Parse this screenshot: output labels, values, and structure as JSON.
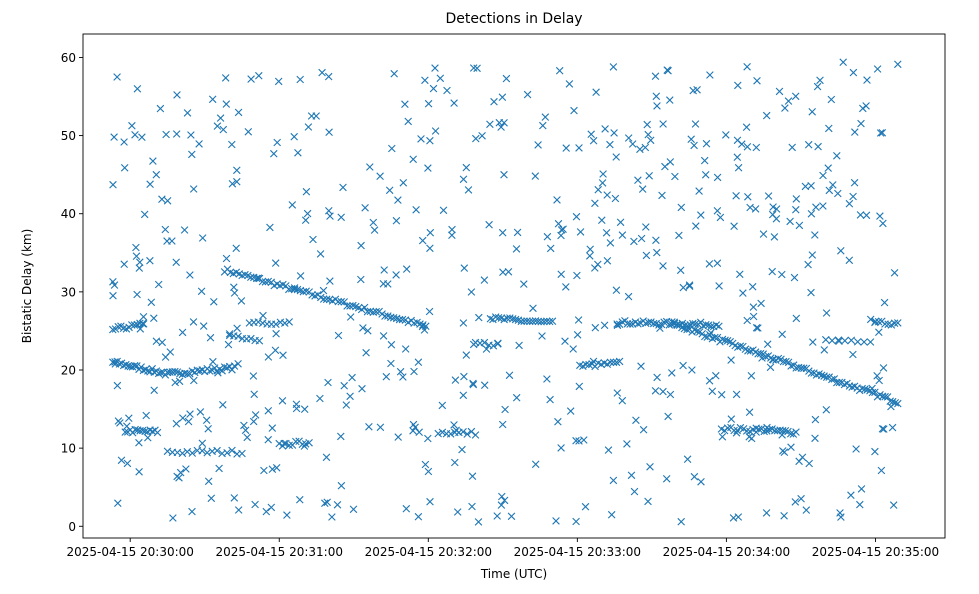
{
  "chart_data": {
    "type": "scatter",
    "title": "Detections in Delay",
    "xlabel": "Time (UTC)",
    "ylabel": "Bistatic Delay (km)",
    "x_range": [
      "2025-04-15 20:29:41",
      "2025-04-15 20:35:28"
    ],
    "xticks": [
      "2025-04-15 20:30:00",
      "2025-04-15 20:31:00",
      "2025-04-15 20:32:00",
      "2025-04-15 20:33:00",
      "2025-04-15 20:34:00",
      "2025-04-15 20:35:00"
    ],
    "ylim": [
      -1.5,
      63
    ],
    "yticks": [
      0,
      10,
      20,
      30,
      40,
      50,
      60
    ],
    "grid": false,
    "marker": "x",
    "color": "#1f77b4",
    "tracks": [
      {
        "from": [
          "2025-04-15 20:29:53",
          32.7
        ],
        "to": [
          "2025-04-15 20:30:52",
          32.7
        ],
        "count": 0
      },
      {
        "from": [
          "2025-04-15 20:30:38",
          32.8
        ],
        "to": [
          "2025-04-15 20:31:59",
          25.6
        ],
        "count": 70
      },
      {
        "from": [
          "2025-04-15 20:29:53",
          21.0
        ],
        "to": [
          "2025-04-15 20:30:15",
          19.5
        ],
        "count": 26
      },
      {
        "from": [
          "2025-04-15 20:30:15",
          19.5
        ],
        "to": [
          "2025-04-15 20:30:42",
          20.3
        ],
        "count": 28
      },
      {
        "from": [
          "2025-04-15 20:33:38",
          26.0
        ],
        "to": [
          "2025-04-15 20:35:09",
          15.9
        ],
        "count": 90
      },
      {
        "from": [
          "2025-04-15 20:33:16",
          26.1
        ],
        "to": [
          "2025-04-15 20:33:57",
          25.8
        ],
        "count": 40
      },
      {
        "from": [
          "2025-04-15 20:32:26",
          26.6
        ],
        "to": [
          "2025-04-15 20:32:50",
          26.0
        ],
        "count": 22
      },
      {
        "from": [
          "2025-04-15 20:29:53",
          25.2
        ],
        "to": [
          "2025-04-15 20:30:05",
          25.8
        ],
        "count": 12
      },
      {
        "from": [
          "2025-04-15 20:29:58",
          12.2
        ],
        "to": [
          "2025-04-15 20:30:11",
          12.1
        ],
        "count": 14
      },
      {
        "from": [
          "2025-04-15 20:30:15",
          9.5
        ],
        "to": [
          "2025-04-15 20:30:45",
          9.5
        ],
        "count": 16
      },
      {
        "from": [
          "2025-04-15 20:33:58",
          12.5
        ],
        "to": [
          "2025-04-15 20:34:12",
          12.3
        ],
        "count": 12
      },
      {
        "from": [
          "2025-04-15 20:34:12",
          12.4
        ],
        "to": [
          "2025-04-15 20:34:28",
          12.0
        ],
        "count": 16
      },
      {
        "from": [
          "2025-04-15 20:32:04",
          12.0
        ],
        "to": [
          "2025-04-15 20:32:19",
          11.9
        ],
        "count": 10
      },
      {
        "from": [
          "2025-04-15 20:33:01",
          20.5
        ],
        "to": [
          "2025-04-15 20:33:17",
          20.9
        ],
        "count": 14
      },
      {
        "from": [
          "2025-04-15 20:31:00",
          10.4
        ],
        "to": [
          "2025-04-15 20:31:12",
          10.8
        ],
        "count": 10
      },
      {
        "from": [
          "2025-04-15 20:35:00",
          26.0
        ],
        "to": [
          "2025-04-15 20:35:09",
          26.0
        ],
        "count": 8
      },
      {
        "from": [
          "2025-04-15 20:30:48",
          26.2
        ],
        "to": [
          "2025-04-15 20:31:04",
          26.0
        ],
        "count": 10
      },
      {
        "from": [
          "2025-04-15 20:30:40",
          24.5
        ],
        "to": [
          "2025-04-15 20:30:52",
          23.5
        ],
        "count": 8
      },
      {
        "from": [
          "2025-04-15 20:32:19",
          23.4
        ],
        "to": [
          "2025-04-15 20:32:28",
          23.3
        ],
        "count": 6
      },
      {
        "from": [
          "2025-04-15 20:34:40",
          23.8
        ],
        "to": [
          "2025-04-15 20:34:58",
          23.8
        ],
        "count": 8
      }
    ],
    "scattered_count": 620,
    "scattered_y_range": [
      0.5,
      59.5
    ]
  }
}
